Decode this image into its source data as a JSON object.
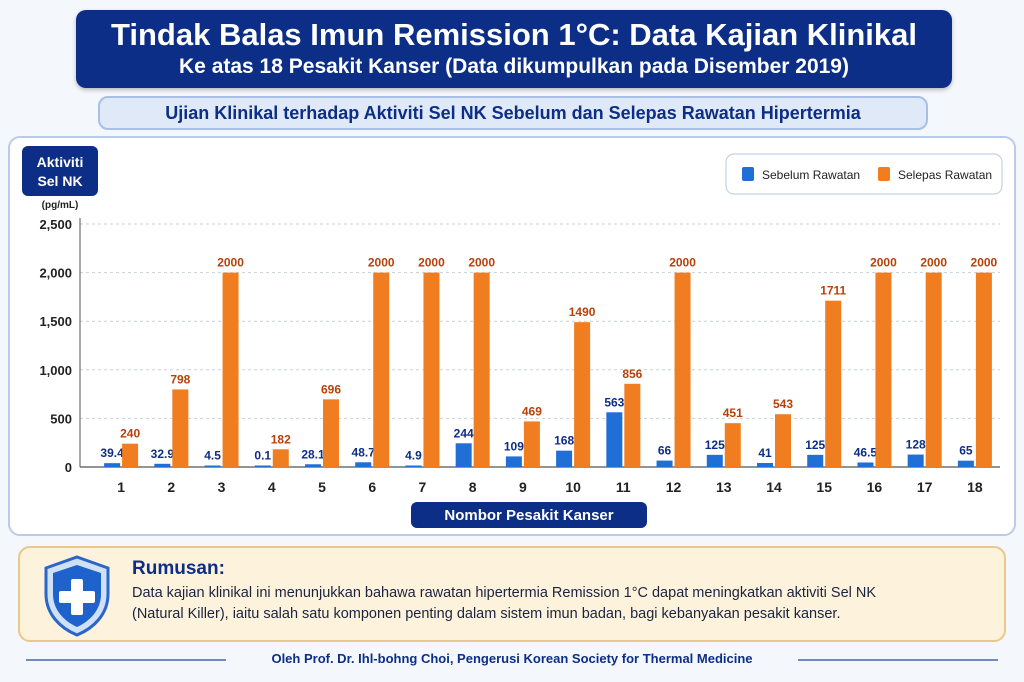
{
  "header": {
    "title": "Tindak Balas Imun Remission 1°C: Data Kajian Klinikal",
    "subtitle": "Ke atas 18 Pesakit Kanser (Data dikumpulkan pada Disember 2019)"
  },
  "section_title": "Ujian Klinikal terhadap Aktiviti Sel NK Sebelum dan Selepas Rawatan Hipertermia",
  "colors": {
    "before": "#1f6fd6",
    "after": "#f07d1f",
    "navy": "#0d2e86",
    "after_label": "#b8400a"
  },
  "chart_data": {
    "type": "bar",
    "ylabel": "Aktiviti Sel NK",
    "yunit": "(pg/mL)",
    "xlabel": "Nombor Pesakit Kanser",
    "ylim": [
      0,
      2500
    ],
    "yticks": [
      "0",
      "500",
      "1,000",
      "1,500",
      "2,000",
      "2,500"
    ],
    "grid": true,
    "legend_position": "top-right",
    "categories": [
      "1",
      "2",
      "3",
      "4",
      "5",
      "6",
      "7",
      "8",
      "9",
      "10",
      "11",
      "12",
      "13",
      "14",
      "15",
      "16",
      "17",
      "18"
    ],
    "series": [
      {
        "name": "Sebelum Rawatan",
        "values": [
          39.4,
          32.9,
          4.5,
          0.1,
          28.1,
          48.7,
          4.9,
          244,
          109,
          168,
          563,
          66,
          125,
          41,
          125,
          46.5,
          128,
          65
        ],
        "labels": [
          "39.4",
          "32.9",
          "4.5",
          "0.1",
          "28.1",
          "48.7",
          "4.9",
          "244",
          "109",
          "168",
          "563",
          "66",
          "125",
          "41",
          "125",
          "46.5",
          "128",
          "65"
        ]
      },
      {
        "name": "Selepas Rawatan",
        "values": [
          240,
          798,
          2000,
          182,
          696,
          2000,
          2000,
          2000,
          469,
          1490,
          856,
          2000,
          451,
          543,
          1711,
          2000,
          2000,
          2000
        ],
        "labels": [
          "240",
          "798",
          "2000",
          "182",
          "696",
          "2000",
          "2000",
          "2000",
          "469",
          "1490",
          "856",
          "2000",
          "451",
          "543",
          "1711",
          "2000",
          "2000",
          "2000"
        ]
      }
    ]
  },
  "summary": {
    "heading": "Rumusan:",
    "line1": "Data kajian klinikal ini menunjukkan bahawa rawatan hipertermia Remission 1°C dapat meningkatkan aktiviti Sel NK",
    "line2": "(Natural Killer), iaitu salah satu komponen penting dalam sistem imun badan, bagi kebanyakan pesakit kanser.",
    "icon": "shield-plus-icon"
  },
  "footer": "Oleh Prof. Dr. Ihl-bohng Choi, Pengerusi Korean Society for Thermal Medicine"
}
